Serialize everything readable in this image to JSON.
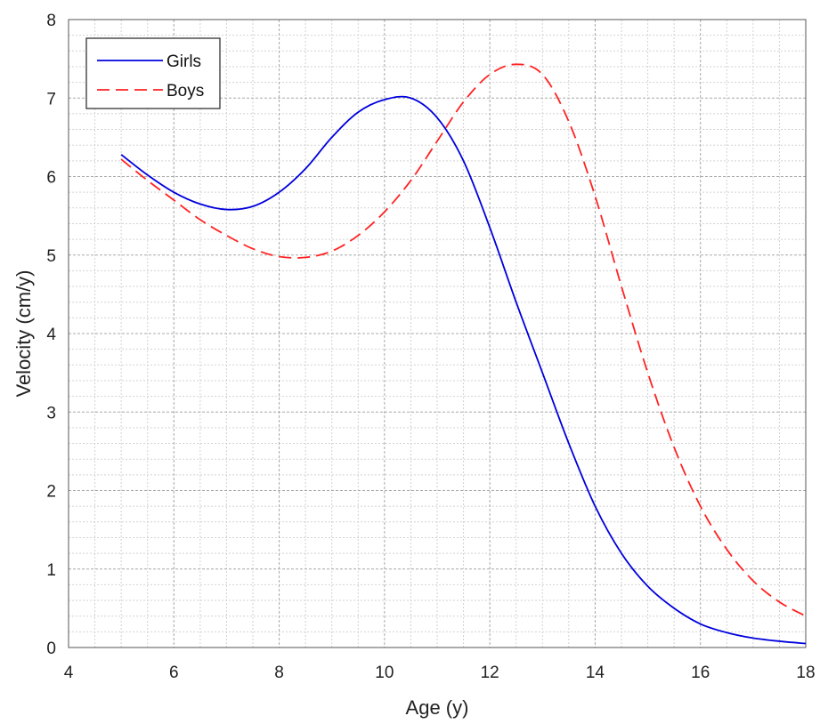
{
  "chart_data": {
    "type": "line",
    "title": "",
    "xlabel": "Age (y)",
    "ylabel": "Velocity (cm/y)",
    "xlim": [
      4,
      18
    ],
    "ylim": [
      0,
      8
    ],
    "x_ticks": [
      4,
      6,
      8,
      10,
      12,
      14,
      16,
      18
    ],
    "y_ticks": [
      0,
      1,
      2,
      3,
      4,
      5,
      6,
      7,
      8
    ],
    "grid": true,
    "minor_grid": true,
    "legend_position": "top-left",
    "series": [
      {
        "name": "Girls",
        "color": "#0000dd",
        "line_style": "solid",
        "x": [
          5,
          5.5,
          6,
          6.5,
          7,
          7.5,
          8,
          8.5,
          9,
          9.5,
          10,
          10.5,
          11,
          11.5,
          12,
          12.5,
          13,
          13.5,
          14,
          14.5,
          15,
          15.5,
          16,
          16.5,
          17,
          17.5,
          18
        ],
        "y": [
          6.28,
          6.02,
          5.8,
          5.65,
          5.58,
          5.62,
          5.8,
          6.1,
          6.5,
          6.82,
          6.98,
          7.0,
          6.75,
          6.2,
          5.35,
          4.4,
          3.5,
          2.6,
          1.8,
          1.2,
          0.78,
          0.5,
          0.3,
          0.19,
          0.12,
          0.08,
          0.05
        ]
      },
      {
        "name": "Boys",
        "color": "#ff2222",
        "line_style": "dashed",
        "x": [
          5,
          5.5,
          6,
          6.5,
          7,
          7.5,
          8,
          8.5,
          9,
          9.5,
          10,
          10.5,
          11,
          11.5,
          12,
          12.5,
          13,
          13.5,
          14,
          14.5,
          15,
          15.5,
          16,
          16.5,
          17,
          17.5,
          18
        ],
        "y": [
          6.22,
          5.95,
          5.7,
          5.45,
          5.25,
          5.08,
          4.98,
          4.97,
          5.05,
          5.25,
          5.55,
          5.95,
          6.45,
          6.95,
          7.3,
          7.43,
          7.3,
          6.7,
          5.75,
          4.6,
          3.5,
          2.55,
          1.8,
          1.25,
          0.85,
          0.58,
          0.4
        ]
      }
    ]
  }
}
